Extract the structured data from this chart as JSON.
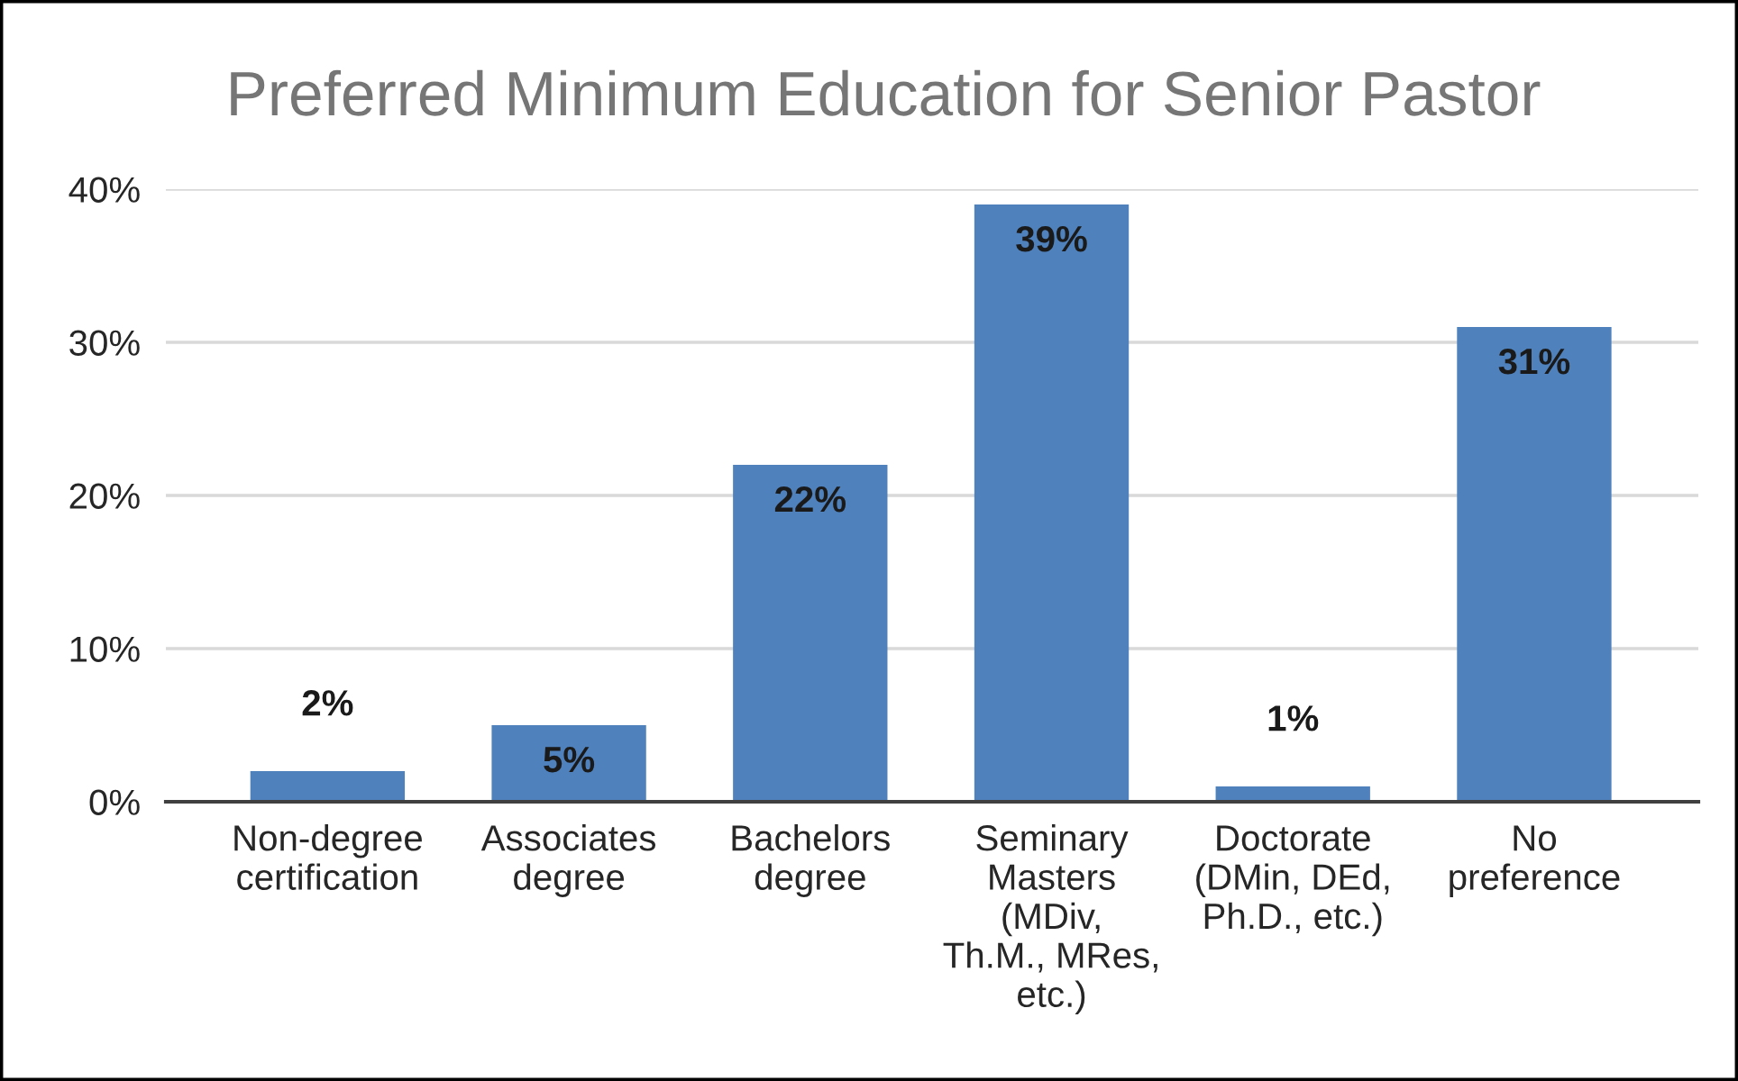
{
  "chart_data": {
    "type": "bar",
    "title": "Preferred Minimum Education for Senior Pastor",
    "categories": [
      "Non-degree\ncertification",
      "Associates\ndegree",
      "Bachelors\ndegree",
      "Seminary\nMasters\n(MDiv,\nTh.M., MRes,\netc.)",
      "Doctorate\n(DMin, DEd,\nPh.D., etc.)",
      "No\npreference"
    ],
    "values": [
      2,
      5,
      22,
      39,
      1,
      31
    ],
    "value_labels": [
      "2%",
      "5%",
      "22%",
      "39%",
      "1%",
      "31%"
    ],
    "color": "#4f81bd",
    "ylim": [
      0,
      40
    ],
    "yticks": [
      {
        "value": 0,
        "label": "0%"
      },
      {
        "value": 10,
        "label": "10%"
      },
      {
        "value": 20,
        "label": "20%"
      },
      {
        "value": 30,
        "label": "30%"
      },
      {
        "value": 40,
        "label": "40%"
      }
    ],
    "grid": "y"
  }
}
